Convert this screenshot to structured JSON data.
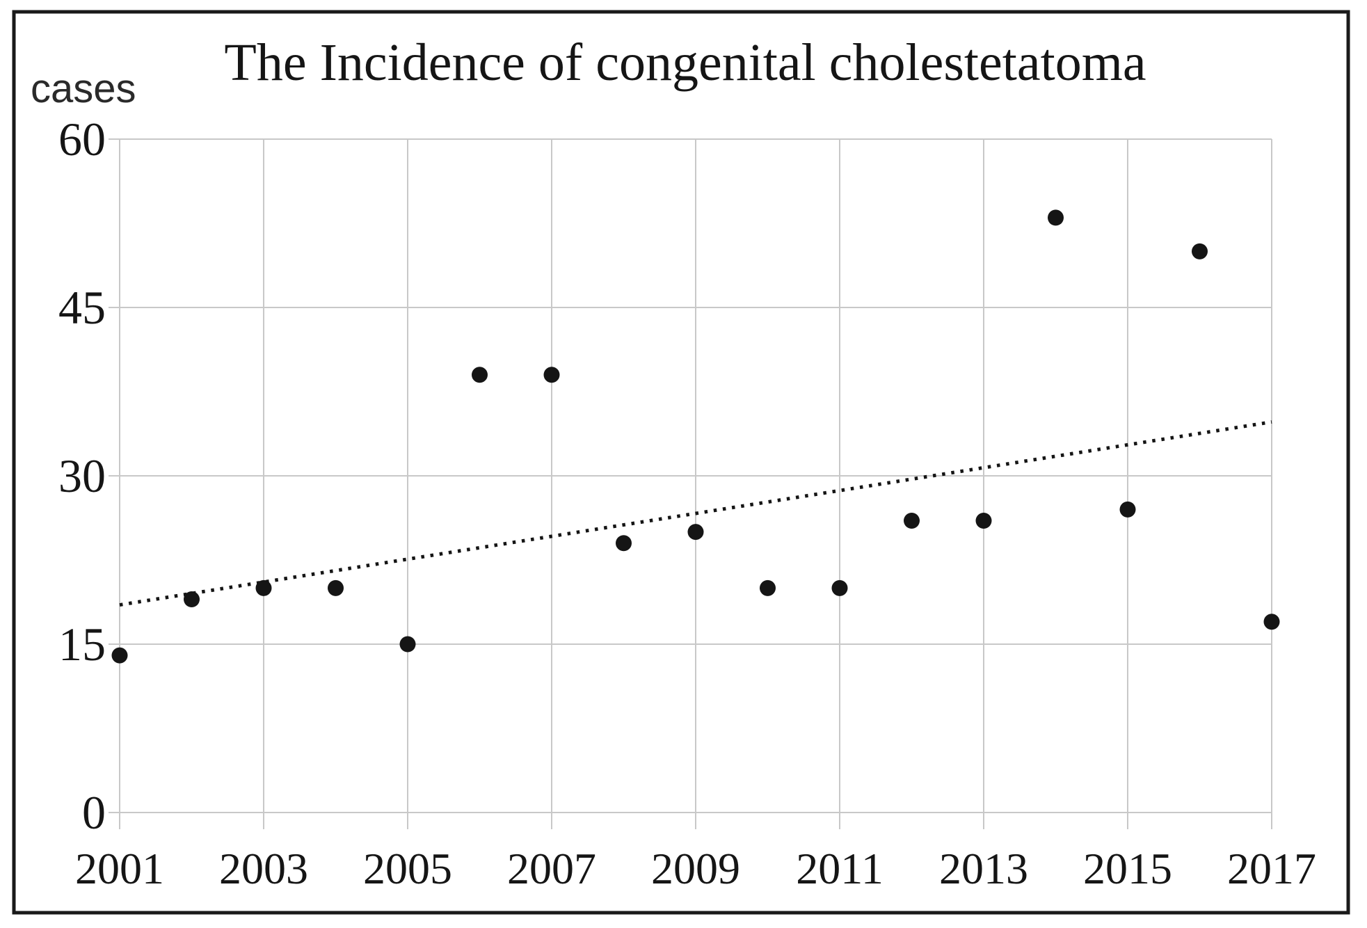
{
  "figure": {
    "background": "#ffffff",
    "border_color": "#1a1a1a"
  },
  "chart_data": {
    "type": "scatter",
    "title": "The Incidence of congenital cholestetatoma",
    "ylabel": "cases",
    "xlabel": "",
    "x": [
      2001,
      2002,
      2003,
      2004,
      2005,
      2006,
      2007,
      2008,
      2009,
      2010,
      2011,
      2012,
      2013,
      2014,
      2015,
      2016,
      2017
    ],
    "values": [
      14,
      19,
      20,
      20,
      15,
      39,
      39,
      24,
      25,
      20,
      20,
      26,
      26,
      53,
      27,
      50,
      17
    ],
    "xticks": [
      2001,
      2003,
      2005,
      2007,
      2009,
      2011,
      2013,
      2015,
      2017
    ],
    "yticks": [
      0,
      15,
      30,
      45,
      60
    ],
    "xlim": [
      2001,
      2017
    ],
    "ylim": [
      0,
      60
    ],
    "grid": true,
    "legend": "none",
    "trendline": {
      "style": "dotted",
      "start_value": 18.5,
      "end_value": 34.8
    },
    "colors": {
      "point": "#151515",
      "trend": "#151515",
      "grid": "#c8c8c8",
      "text": "#151515"
    }
  }
}
